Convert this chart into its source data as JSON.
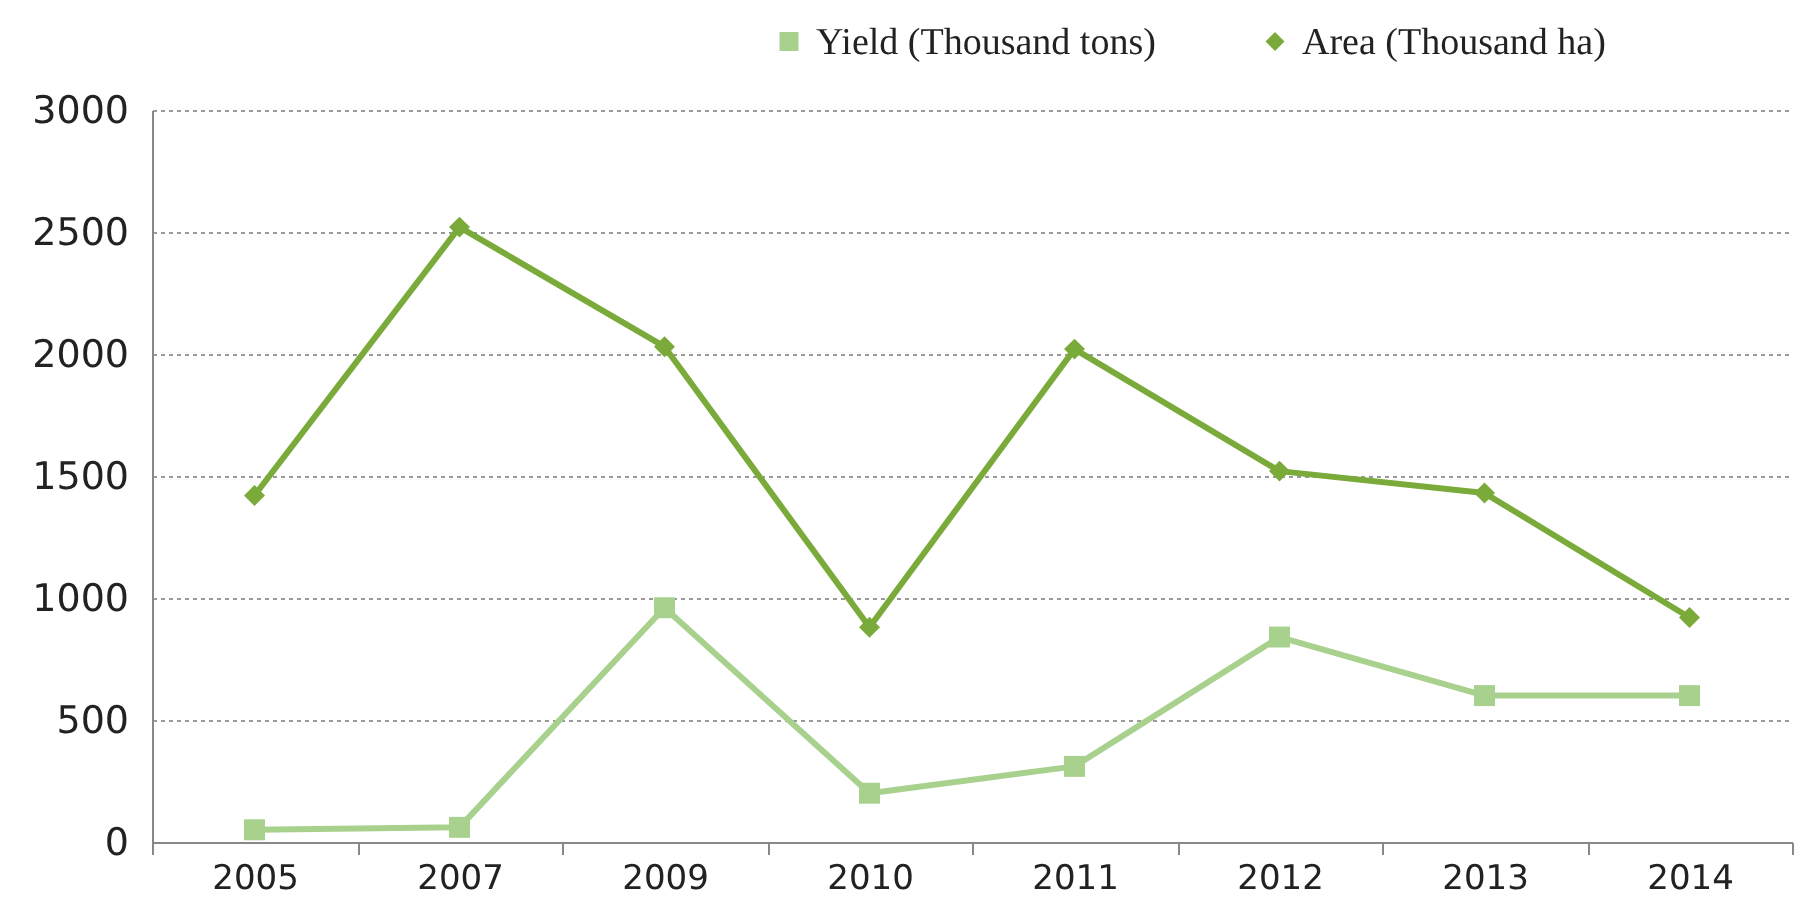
{
  "chart_data": {
    "type": "line",
    "categories": [
      "2005",
      "2007",
      "2009",
      "2010",
      "2011",
      "2012",
      "2013",
      "2014"
    ],
    "series": [
      {
        "name": "Yield (Thousand tons)",
        "color": "#a9d18e",
        "marker": "square",
        "values": [
          50,
          60,
          960,
          200,
          310,
          840,
          600,
          600
        ]
      },
      {
        "name": "Area (Thousand ha)",
        "color": "#7aab3a",
        "marker": "diamond",
        "values": [
          1420,
          2520,
          2030,
          880,
          2020,
          1520,
          1430,
          920
        ]
      }
    ],
    "ylim": [
      0,
      3000
    ],
    "yticks": [
      0,
      500,
      1000,
      1500,
      2000,
      2500,
      3000
    ],
    "grid": "y",
    "legend": "top right",
    "line_style": "solid"
  }
}
